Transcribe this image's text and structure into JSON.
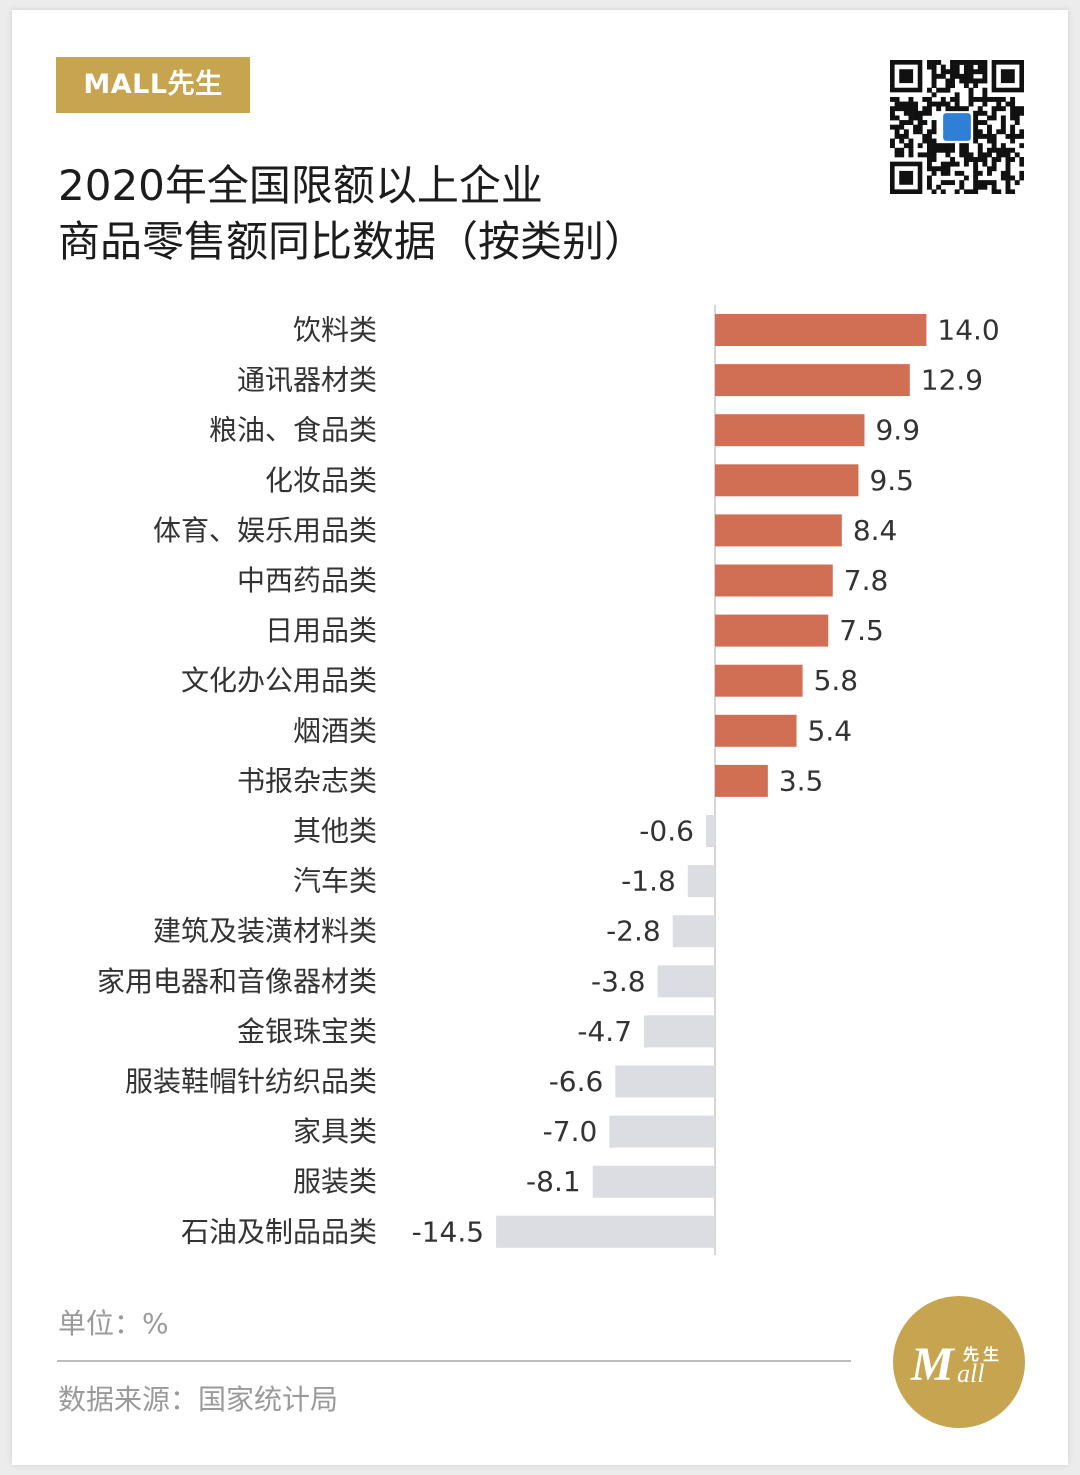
{
  "brand": {
    "tag": "MALL先生"
  },
  "title_lines": [
    "2020年全国限额以上企业",
    "商品零售额同比数据（按类别）"
  ],
  "colors": {
    "positive": "#d16f55",
    "negative": "#dcdde2",
    "gold": "#c7a550"
  },
  "chart_data": {
    "type": "bar",
    "orientation": "horizontal",
    "categories": [
      "饮料类",
      "通讯器材类",
      "粮油、食品类",
      "化妆品类",
      "体育、娱乐用品类",
      "中西药品类",
      "日用品类",
      "文化办公用品类",
      "烟酒类",
      "书报杂志类",
      "其他类",
      "汽车类",
      "建筑及装潢材料类",
      "家用电器和音像器材类",
      "金银珠宝类",
      "服装鞋帽针纺织品类",
      "家具类",
      "服装类",
      "石油及制品品类"
    ],
    "values": [
      14.0,
      12.9,
      9.9,
      9.5,
      8.4,
      7.8,
      7.5,
      5.8,
      5.4,
      3.5,
      -0.6,
      -1.8,
      -2.8,
      -3.8,
      -4.7,
      -6.6,
      -7.0,
      -8.1,
      -14.5
    ],
    "value_labels": [
      "14.0",
      "12.9",
      "9.9",
      "9.5",
      "8.4",
      "7.8",
      "7.5",
      "5.8",
      "5.4",
      "3.5",
      "-0.6",
      "-1.8",
      "-2.8",
      "-3.8",
      "-4.7",
      "-6.6",
      "-7.0",
      "-8.1",
      "-14.5"
    ],
    "title": "",
    "xlabel": "",
    "ylabel": "",
    "grid": false
  },
  "footer": {
    "unit": "单位：%",
    "source": "数据来源：国家统计局"
  },
  "logo": {
    "mark": "M",
    "chars": "先生",
    "script": "all"
  }
}
